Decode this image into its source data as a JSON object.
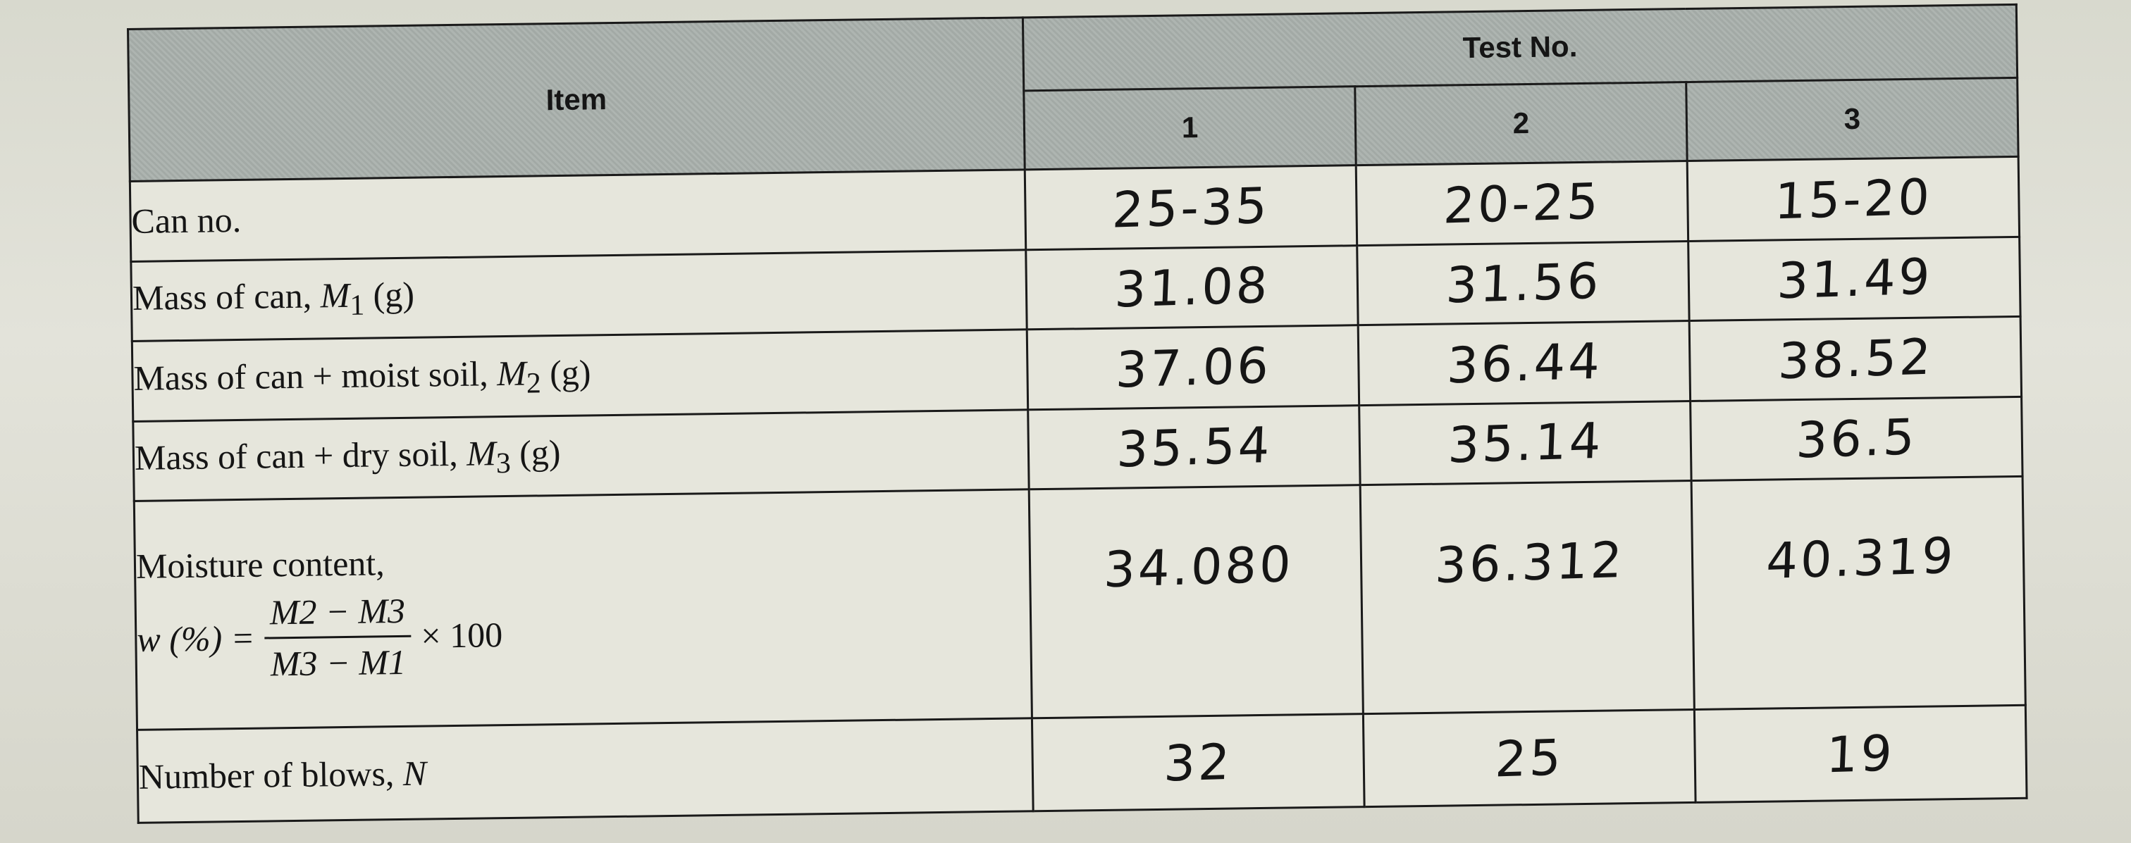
{
  "table": {
    "item_header": "Item",
    "test_header": "Test No.",
    "test_numbers": [
      "1",
      "2",
      "3"
    ],
    "rows": {
      "can_no": {
        "label": "Can no.",
        "values": [
          "25-35",
          "20-25",
          "15-20"
        ]
      },
      "mass_can": {
        "label_prefix": "Mass of can, ",
        "symbol": "M",
        "sub": "1",
        "unit": " (g)",
        "values": [
          "31.08",
          "31.56",
          "31.49"
        ]
      },
      "mass_moist": {
        "label_prefix": "Mass of can + moist soil, ",
        "symbol": "M",
        "sub": "2",
        "unit": " (g)",
        "values": [
          "37.06",
          "36.44",
          "38.52"
        ]
      },
      "mass_dry": {
        "label_prefix": "Mass of can + dry soil, ",
        "symbol": "M",
        "sub": "3",
        "unit": " (g)",
        "values": [
          "35.54",
          "35.14",
          "36.5"
        ]
      },
      "moisture": {
        "label": "Moisture content,",
        "lhs": "w (%) =",
        "numerator": "M2 − M3",
        "denominator": "M3 − M1",
        "times": "× 100",
        "values": [
          "34.080",
          "36.312",
          "40.319"
        ]
      },
      "blows": {
        "label_prefix": "Number of blows, ",
        "symbol": "N",
        "values": [
          "32",
          "25",
          "19"
        ]
      }
    }
  }
}
